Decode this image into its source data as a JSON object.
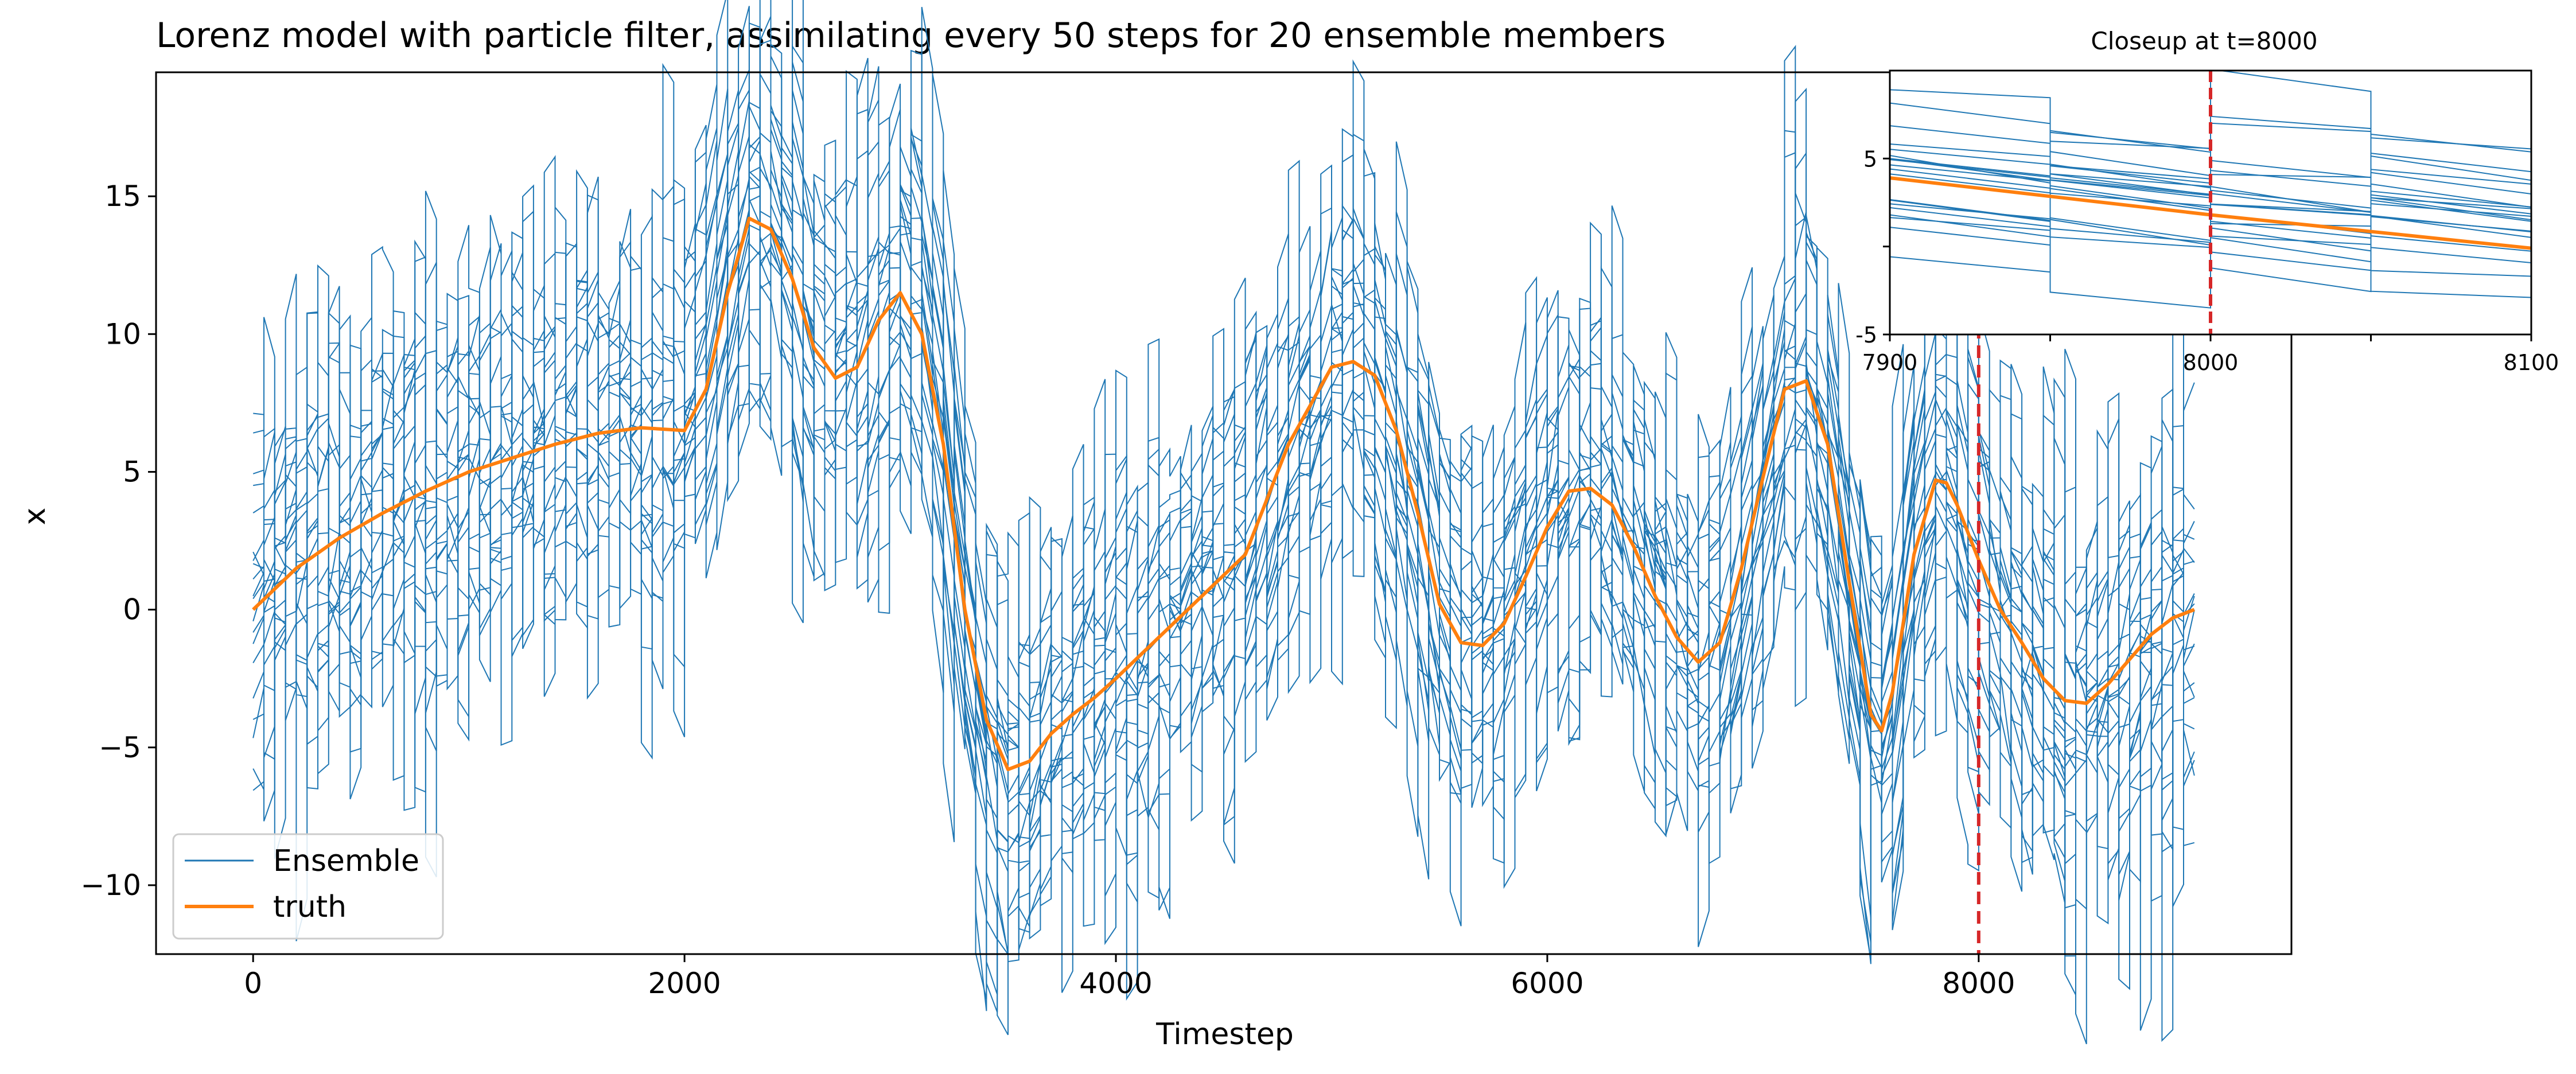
{
  "chart_data": [
    {
      "type": "line",
      "title": "Lorenz model with particle filter, assimilating every 50 steps for 20 ensemble members",
      "xlabel": "Timestep",
      "ylabel": "x",
      "xlim": [
        -450,
        9450
      ],
      "ylim": [
        -12.5,
        19.5
      ],
      "xticks": [
        0,
        2000,
        4000,
        6000,
        8000
      ],
      "yticks": [
        -10,
        -5,
        0,
        5,
        10,
        15
      ],
      "grid": false,
      "legend": {
        "placement": "lower-left",
        "entries": [
          {
            "label": "Ensemble",
            "color": "#1f77b4"
          },
          {
            "label": "truth",
            "color": "#ff7f0e"
          }
        ]
      },
      "marker_line": {
        "x": 8000,
        "color": "#d62728",
        "style": "dashed"
      },
      "assimilation_interval": 50,
      "ensemble_members": 20,
      "ensemble_spread": 4,
      "series": [
        {
          "name": "truth",
          "color": "#ff7f0e",
          "x": [
            0,
            200,
            400,
            600,
            800,
            1000,
            1200,
            1400,
            1600,
            1800,
            2000,
            2100,
            2200,
            2300,
            2400,
            2500,
            2600,
            2700,
            2800,
            2900,
            3000,
            3100,
            3200,
            3300,
            3400,
            3500,
            3600,
            3700,
            3800,
            3900,
            4000,
            4200,
            4400,
            4600,
            4800,
            5000,
            5100,
            5200,
            5300,
            5400,
            5500,
            5600,
            5700,
            5800,
            5900,
            6000,
            6100,
            6200,
            6300,
            6400,
            6500,
            6600,
            6700,
            6800,
            6900,
            7000,
            7100,
            7200,
            7300,
            7400,
            7500,
            7550,
            7600,
            7700,
            7800,
            7850,
            7900,
            8000,
            8100,
            8200,
            8300,
            8400,
            8500,
            8600,
            8700,
            8800,
            8900,
            9000
          ],
          "y": [
            0,
            1.5,
            2.6,
            3.5,
            4.3,
            5.0,
            5.5,
            6.0,
            6.4,
            6.6,
            6.5,
            8.0,
            11.5,
            14.2,
            13.8,
            12.0,
            9.5,
            8.4,
            8.8,
            10.5,
            11.5,
            10.0,
            6.0,
            0.0,
            -4.0,
            -5.8,
            -5.5,
            -4.5,
            -3.8,
            -3.2,
            -2.5,
            -1.0,
            0.5,
            2.0,
            6.0,
            8.8,
            9.0,
            8.5,
            6.5,
            3.5,
            0.2,
            -1.2,
            -1.3,
            -0.5,
            1.2,
            3.0,
            4.3,
            4.4,
            3.8,
            2.3,
            0.5,
            -1.0,
            -1.9,
            -1.2,
            1.5,
            4.8,
            8.0,
            8.3,
            6.0,
            1.0,
            -3.8,
            -4.4,
            -3.0,
            2.0,
            4.7,
            4.6,
            3.8,
            1.8,
            0.0,
            -1.2,
            -2.5,
            -3.3,
            -3.4,
            -2.7,
            -1.8,
            -0.9,
            -0.3,
            0.0
          ]
        },
        {
          "name": "Ensemble",
          "color": "#1f77b4"
        }
      ]
    },
    {
      "type": "line",
      "title": "Closeup at t=8000",
      "xlim": [
        7900,
        8100
      ],
      "ylim": [
        -5,
        10
      ],
      "xticks": [
        7900,
        8000,
        8100
      ],
      "yticks": [
        -5,
        5
      ],
      "marker_line": {
        "x": 8000,
        "color": "#d62728",
        "style": "dashed"
      },
      "truth_segment": {
        "x": [
          7900,
          8000,
          8100
        ],
        "y": [
          3.9,
          1.8,
          -0.1
        ]
      }
    }
  ],
  "colors": {
    "ensemble": "#1f77b4",
    "truth": "#ff7f0e",
    "marker": "#d62728",
    "axis": "#000000"
  }
}
